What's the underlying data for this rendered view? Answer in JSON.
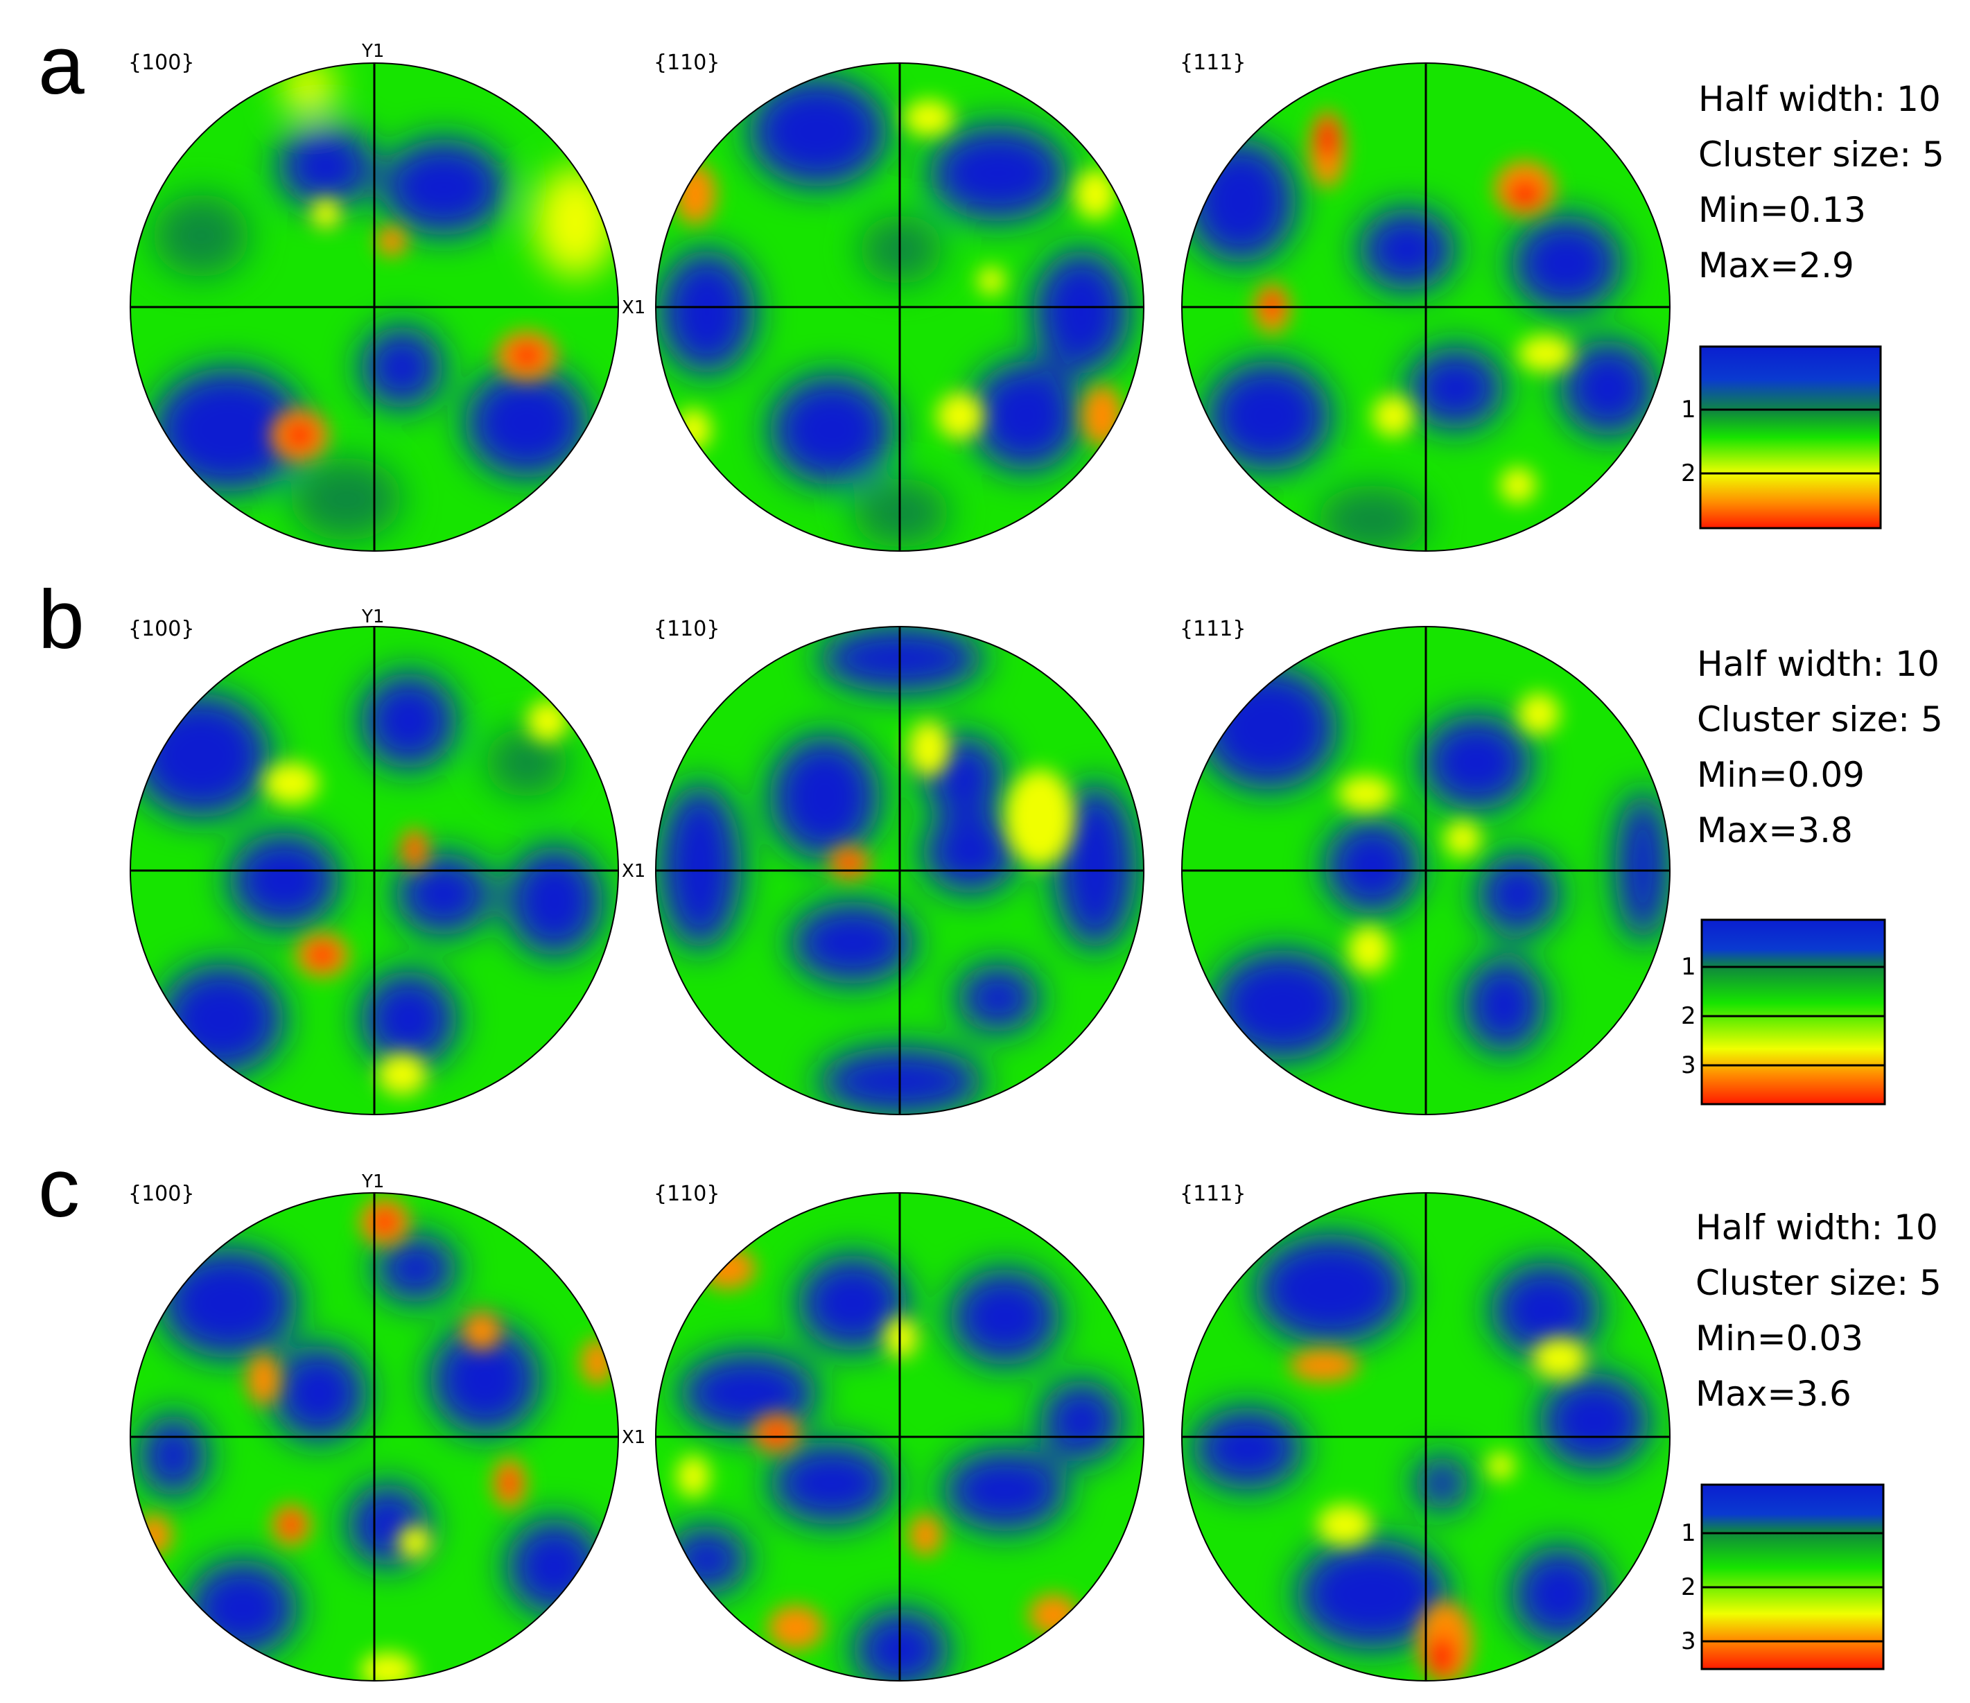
{
  "colors": {
    "low": "#0a1fd0",
    "mid_low": "#0f8a3c",
    "mid": "#16e400",
    "mid_high": "#f0ff00",
    "high": "#ff8c00",
    "max": "#ff1a00"
  },
  "panels": [
    {
      "letter": "a",
      "figures": [
        {
          "label": "{100}",
          "y_axis": "Y1",
          "x_axis": "X1"
        },
        {
          "label": "{110}"
        },
        {
          "label": "{111}"
        }
      ],
      "stats": {
        "half_width": "Half width: 10",
        "cluster_size": "Cluster size: 5",
        "min": "Min=0.13",
        "max": "Max=2.9"
      },
      "legend": {
        "ticks": [
          {
            "label": "1",
            "value": 1
          },
          {
            "label": "2",
            "value": 2
          }
        ],
        "min_value": 0.13,
        "max_value": 2.9
      }
    },
    {
      "letter": "b",
      "figures": [
        {
          "label": "{100}",
          "y_axis": "Y1",
          "x_axis": "X1"
        },
        {
          "label": "{110}"
        },
        {
          "label": "{111}"
        }
      ],
      "stats": {
        "half_width": "Half width: 10",
        "cluster_size": "Cluster size: 5",
        "min": "Min=0.09",
        "max": "Max=3.8"
      },
      "legend": {
        "ticks": [
          {
            "label": "1",
            "value": 1
          },
          {
            "label": "2",
            "value": 2
          },
          {
            "label": "3",
            "value": 3
          }
        ],
        "min_value": 0.09,
        "max_value": 3.8
      }
    },
    {
      "letter": "c",
      "figures": [
        {
          "label": "{100}",
          "y_axis": "Y1",
          "x_axis": "X1"
        },
        {
          "label": "{110}"
        },
        {
          "label": "{111}"
        }
      ],
      "stats": {
        "half_width": "Half width: 10",
        "cluster_size": "Cluster size: 5",
        "min": "Min=0.03",
        "max": "Max=3.6"
      },
      "legend": {
        "ticks": [
          {
            "label": "1",
            "value": 1
          },
          {
            "label": "2",
            "value": 2
          },
          {
            "label": "3",
            "value": 3
          }
        ],
        "min_value": 0.03,
        "max_value": 3.6
      }
    }
  ]
}
